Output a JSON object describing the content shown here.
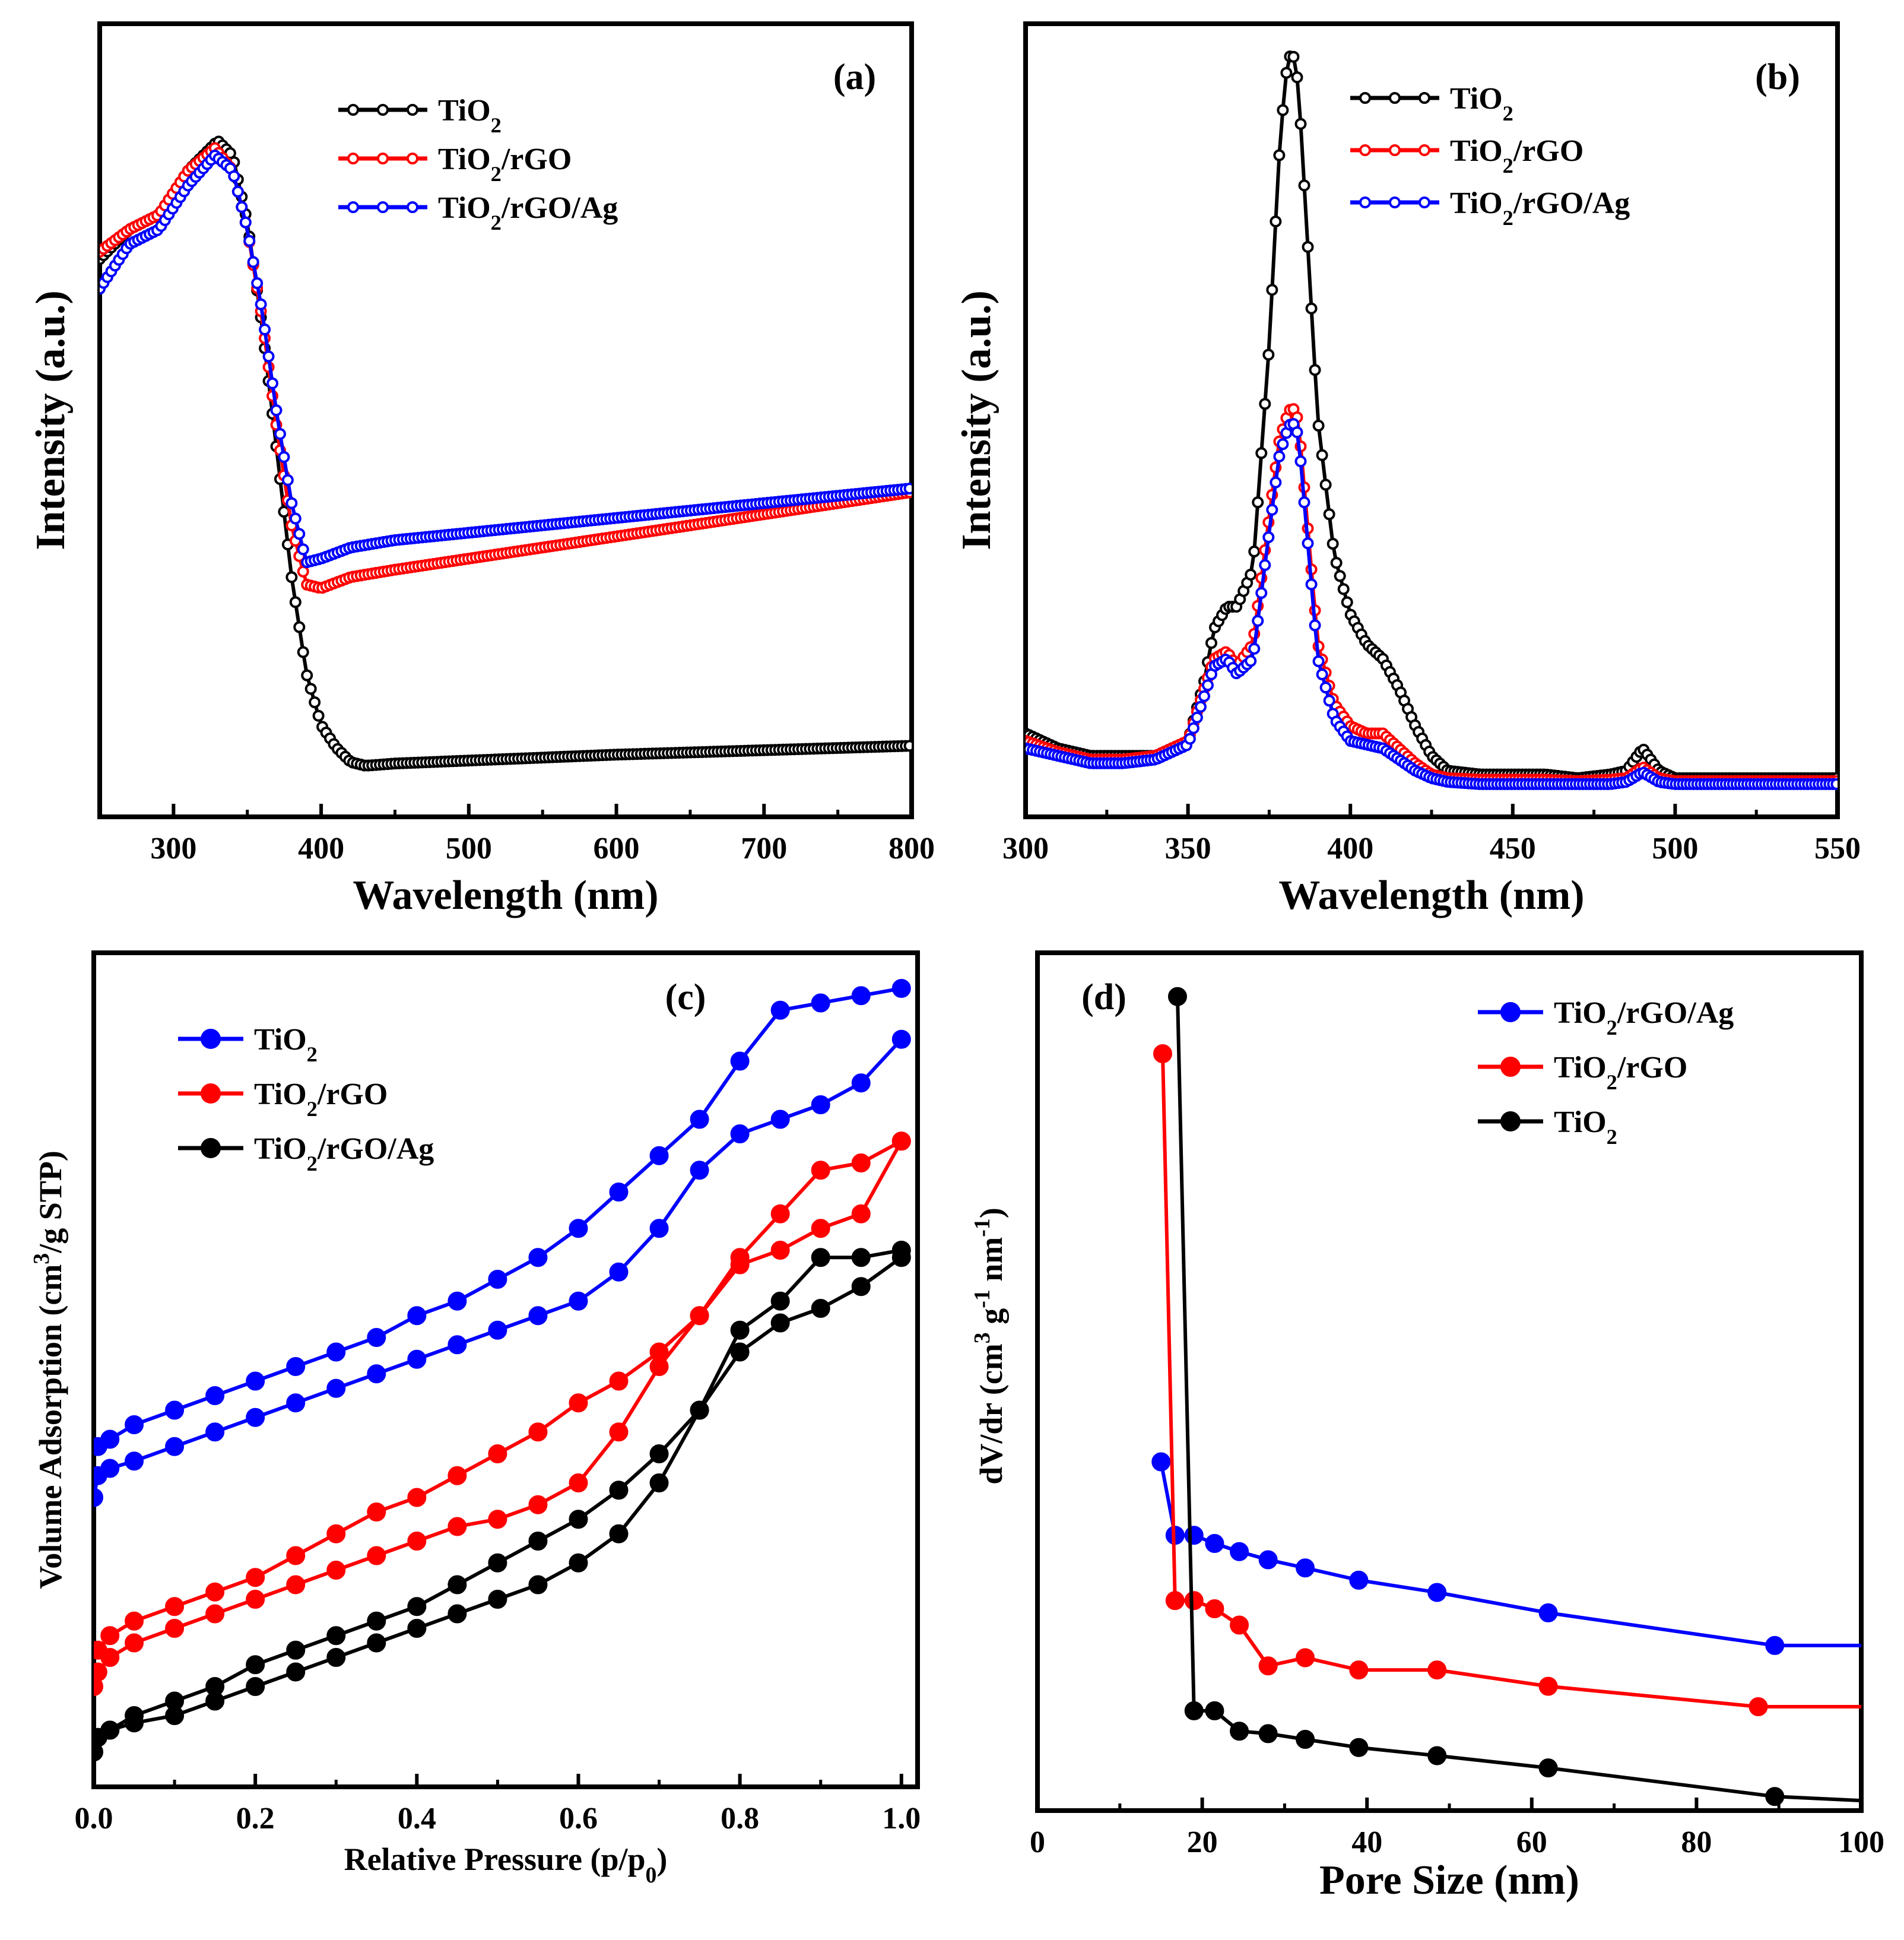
{
  "chart_data": [
    {
      "panel": "(a)",
      "type": "scatter",
      "xlabel": "Wavelength (nm)",
      "ylabel": "Intensity (a.u.)",
      "xlim": [
        250,
        800
      ],
      "ylim": [
        0,
        1
      ],
      "xticks": [
        "300",
        "400",
        "500",
        "600",
        "700",
        "800"
      ],
      "legend_position": "top-center",
      "series": [
        {
          "name": "TiO2",
          "sub": "2",
          "label_parts": [
            "TiO",
            "2",
            ""
          ],
          "color": "#000000",
          "x": [
            250,
            270,
            290,
            310,
            330,
            340,
            350,
            360,
            370,
            380,
            390,
            400,
            410,
            420,
            430,
            450,
            500,
            550,
            600,
            650,
            700,
            750,
            800
          ],
          "y": [
            0.73,
            0.77,
            0.79,
            0.85,
            0.89,
            0.87,
            0.78,
            0.64,
            0.47,
            0.3,
            0.17,
            0.1,
            0.07,
            0.05,
            0.045,
            0.048,
            0.052,
            0.056,
            0.06,
            0.063,
            0.066,
            0.069,
            0.072
          ]
        },
        {
          "name": "TiO2/rGO",
          "sub": "2",
          "label_parts": [
            "TiO",
            "2",
            "/rGO"
          ],
          "color": "#ff0000",
          "x": [
            250,
            270,
            290,
            310,
            328,
            340,
            350,
            360,
            370,
            380,
            390,
            400,
            420,
            450,
            500,
            550,
            600,
            650,
            700,
            750,
            800
          ],
          "y": [
            0.74,
            0.77,
            0.79,
            0.85,
            0.88,
            0.85,
            0.77,
            0.65,
            0.5,
            0.37,
            0.29,
            0.285,
            0.3,
            0.31,
            0.325,
            0.34,
            0.355,
            0.37,
            0.385,
            0.4,
            0.415
          ]
        },
        {
          "name": "TiO2/rGO/Ag",
          "sub": "2",
          "label_parts": [
            "TiO",
            "2",
            "/rGO/Ag"
          ],
          "color": "#0000ff",
          "x": [
            250,
            270,
            290,
            310,
            328,
            340,
            350,
            360,
            370,
            380,
            390,
            400,
            420,
            450,
            500,
            550,
            600,
            650,
            700,
            750,
            800
          ],
          "y": [
            0.69,
            0.75,
            0.77,
            0.83,
            0.87,
            0.85,
            0.77,
            0.66,
            0.52,
            0.4,
            0.32,
            0.325,
            0.34,
            0.35,
            0.36,
            0.37,
            0.38,
            0.39,
            0.4,
            0.41,
            0.42
          ]
        }
      ]
    },
    {
      "panel": "(b)",
      "type": "scatter",
      "xlabel": "Wavelength (nm)",
      "ylabel": "Intensity (a.u.)",
      "xlim": [
        300,
        550
      ],
      "ylim": [
        0,
        1
      ],
      "xticks": [
        "300",
        "350",
        "400",
        "450",
        "500",
        "550"
      ],
      "legend_position": "top-center",
      "series": [
        {
          "name": "TiO2",
          "sub": "2",
          "label_parts": [
            "TiO",
            "2",
            ""
          ],
          "color": "#000000",
          "x": [
            300,
            310,
            320,
            330,
            340,
            350,
            355,
            358,
            362,
            365,
            370,
            375,
            378,
            380,
            382,
            384,
            386,
            390,
            395,
            400,
            405,
            410,
            415,
            420,
            425,
            430,
            440,
            450,
            460,
            470,
            480,
            485,
            490,
            495,
            500,
            520,
            550
          ],
          "y": [
            0.08,
            0.06,
            0.05,
            0.05,
            0.05,
            0.07,
            0.15,
            0.22,
            0.25,
            0.25,
            0.3,
            0.6,
            0.85,
            0.96,
            1.0,
            0.95,
            0.8,
            0.5,
            0.32,
            0.24,
            0.2,
            0.18,
            0.14,
            0.09,
            0.05,
            0.03,
            0.025,
            0.025,
            0.025,
            0.02,
            0.025,
            0.03,
            0.06,
            0.03,
            0.02,
            0.02,
            0.02
          ]
        },
        {
          "name": "TiO2/rGO",
          "sub": "2",
          "label_parts": [
            "TiO",
            "2",
            "/rGO"
          ],
          "color": "#ff0000",
          "x": [
            300,
            310,
            320,
            330,
            340,
            350,
            355,
            358,
            362,
            365,
            370,
            375,
            378,
            380,
            382,
            384,
            386,
            390,
            395,
            400,
            405,
            410,
            415,
            420,
            425,
            430,
            440,
            450,
            460,
            470,
            480,
            485,
            490,
            495,
            500,
            520,
            550
          ],
          "y": [
            0.07,
            0.055,
            0.045,
            0.045,
            0.05,
            0.07,
            0.14,
            0.18,
            0.19,
            0.17,
            0.2,
            0.37,
            0.47,
            0.5,
            0.52,
            0.5,
            0.4,
            0.2,
            0.12,
            0.09,
            0.08,
            0.08,
            0.06,
            0.04,
            0.025,
            0.02,
            0.018,
            0.018,
            0.018,
            0.016,
            0.018,
            0.02,
            0.035,
            0.02,
            0.016,
            0.016,
            0.016
          ]
        },
        {
          "name": "TiO2/rGO/Ag",
          "sub": "2",
          "label_parts": [
            "TiO",
            "2",
            "/rGO/Ag"
          ],
          "color": "#0000ff",
          "x": [
            300,
            310,
            320,
            330,
            340,
            350,
            355,
            358,
            362,
            365,
            370,
            375,
            378,
            380,
            382,
            384,
            386,
            390,
            395,
            400,
            405,
            410,
            415,
            420,
            425,
            430,
            440,
            450,
            460,
            470,
            480,
            485,
            490,
            495,
            500,
            520,
            550
          ],
          "y": [
            0.06,
            0.05,
            0.04,
            0.04,
            0.045,
            0.065,
            0.13,
            0.17,
            0.18,
            0.16,
            0.18,
            0.35,
            0.45,
            0.48,
            0.5,
            0.48,
            0.38,
            0.18,
            0.1,
            0.07,
            0.065,
            0.06,
            0.045,
            0.03,
            0.02,
            0.015,
            0.012,
            0.012,
            0.012,
            0.012,
            0.012,
            0.015,
            0.028,
            0.015,
            0.012,
            0.012,
            0.012
          ]
        }
      ]
    },
    {
      "panel": "(c)",
      "type": "line",
      "xlabel": "Relative Pressure (p/p0)",
      "xlabel_parts": [
        "Relative Pressure (p/p",
        "0",
        ")"
      ],
      "ylabel": "Volume Adsorption (cm3/g STP)",
      "ylabel_parts": [
        "Volume Adsorption (cm",
        "3",
        "/g STP)"
      ],
      "xlim": [
        0,
        1.02
      ],
      "ylim": [
        0,
        1
      ],
      "xticks": [
        "0.0",
        "0.2",
        "0.4",
        "0.6",
        "0.8",
        "1.0"
      ],
      "legend_position": "top-left",
      "series": [
        {
          "name": "TiO2",
          "sub": "2",
          "label_parts": [
            "TiO",
            "2",
            ""
          ],
          "color": "#0000ff",
          "adsorption": {
            "x": [
              0.0,
              0.005,
              0.02,
              0.05,
              0.1,
              0.15,
              0.2,
              0.25,
              0.3,
              0.35,
              0.4,
              0.45,
              0.5,
              0.55,
              0.6,
              0.65,
              0.7,
              0.75,
              0.8,
              0.85,
              0.9,
              0.95,
              1.0
            ],
            "y": [
              0.3,
              0.33,
              0.34,
              0.35,
              0.37,
              0.39,
              0.41,
              0.43,
              0.45,
              0.47,
              0.49,
              0.51,
              0.53,
              0.55,
              0.57,
              0.61,
              0.67,
              0.75,
              0.8,
              0.82,
              0.84,
              0.87,
              0.93
            ]
          },
          "desorption": {
            "x": [
              1.0,
              0.95,
              0.9,
              0.85,
              0.8,
              0.75,
              0.7,
              0.65,
              0.6,
              0.55,
              0.5,
              0.45,
              0.4,
              0.35,
              0.3,
              0.25,
              0.2,
              0.15,
              0.1,
              0.05,
              0.02,
              0.005
            ],
            "y": [
              1.0,
              0.99,
              0.98,
              0.97,
              0.9,
              0.82,
              0.77,
              0.72,
              0.67,
              0.63,
              0.6,
              0.57,
              0.55,
              0.52,
              0.5,
              0.48,
              0.46,
              0.44,
              0.42,
              0.4,
              0.38,
              0.37
            ]
          }
        },
        {
          "name": "TiO2/rGO",
          "sub": "2",
          "label_parts": [
            "TiO",
            "2",
            "/rGO"
          ],
          "color": "#ff0000",
          "adsorption": {
            "x": [
              0.0,
              0.005,
              0.02,
              0.05,
              0.1,
              0.15,
              0.2,
              0.25,
              0.3,
              0.35,
              0.4,
              0.45,
              0.5,
              0.55,
              0.6,
              0.65,
              0.7,
              0.75,
              0.8,
              0.85,
              0.9,
              0.95,
              1.0
            ],
            "y": [
              0.04,
              0.06,
              0.08,
              0.1,
              0.12,
              0.14,
              0.16,
              0.18,
              0.2,
              0.22,
              0.24,
              0.26,
              0.27,
              0.29,
              0.32,
              0.39,
              0.48,
              0.55,
              0.62,
              0.64,
              0.67,
              0.69,
              0.79
            ]
          },
          "desorption": {
            "x": [
              1.0,
              0.95,
              0.9,
              0.85,
              0.8,
              0.75,
              0.7,
              0.65,
              0.6,
              0.55,
              0.5,
              0.45,
              0.4,
              0.35,
              0.3,
              0.25,
              0.2,
              0.15,
              0.1,
              0.05,
              0.02,
              0.005
            ],
            "y": [
              0.79,
              0.76,
              0.75,
              0.69,
              0.63,
              0.55,
              0.5,
              0.46,
              0.43,
              0.39,
              0.36,
              0.33,
              0.3,
              0.28,
              0.25,
              0.22,
              0.19,
              0.17,
              0.15,
              0.13,
              0.11,
              0.09
            ]
          }
        },
        {
          "name": "TiO2/rGO/Ag",
          "sub": "2",
          "label_parts": [
            "TiO",
            "2",
            "/rGO/Ag"
          ],
          "color": "#000000",
          "adsorption": {
            "x": [
              0.0,
              0.005,
              0.02,
              0.05,
              0.1,
              0.15,
              0.2,
              0.25,
              0.3,
              0.35,
              0.4,
              0.45,
              0.5,
              0.55,
              0.6,
              0.65,
              0.7,
              0.75,
              0.8,
              0.85,
              0.9,
              0.95,
              1.0
            ],
            "y": [
              -0.05,
              -0.03,
              -0.02,
              -0.01,
              0.0,
              0.02,
              0.04,
              0.06,
              0.08,
              0.1,
              0.12,
              0.14,
              0.16,
              0.18,
              0.21,
              0.25,
              0.32,
              0.42,
              0.5,
              0.54,
              0.56,
              0.59,
              0.63
            ]
          },
          "desorption": {
            "x": [
              1.0,
              0.95,
              0.9,
              0.85,
              0.8,
              0.75,
              0.7,
              0.65,
              0.6,
              0.55,
              0.5,
              0.45,
              0.4,
              0.35,
              0.3,
              0.25,
              0.2,
              0.15,
              0.1,
              0.05,
              0.02,
              0.005
            ],
            "y": [
              0.64,
              0.63,
              0.63,
              0.57,
              0.53,
              0.42,
              0.36,
              0.31,
              0.27,
              0.24,
              0.21,
              0.18,
              0.15,
              0.13,
              0.11,
              0.09,
              0.07,
              0.04,
              0.02,
              0.0,
              -0.02,
              -0.03
            ]
          }
        }
      ]
    },
    {
      "panel": "(d)",
      "type": "line",
      "xlabel": "Pore Size (nm)",
      "ylabel": "dV/dr (cm3 g-1 nm-1)",
      "ylabel_parts": [
        "dV/dr (cm",
        "3",
        " g",
        "-1",
        " nm",
        "-1",
        ")"
      ],
      "xlim": [
        0,
        100
      ],
      "ylim": [
        0,
        1
      ],
      "xticks": [
        "0",
        "20",
        "40",
        "60",
        "80",
        "100"
      ],
      "legend_position": "top-right",
      "series": [
        {
          "name": "TiO2/rGO/Ag",
          "sub": "2",
          "label_parts": [
            "TiO",
            "2",
            "/rGO/Ag"
          ],
          "color": "#0000ff",
          "x": [
            15.0,
            16.7,
            19.0,
            21.5,
            24.5,
            28.0,
            32.5,
            39.0,
            48.5,
            62.0,
            89.5,
            100
          ],
          "y": [
            0.42,
            0.33,
            0.33,
            0.32,
            0.31,
            0.3,
            0.29,
            0.275,
            0.26,
            0.235,
            0.195,
            0.195
          ],
          "markers": [
            true,
            true,
            true,
            true,
            true,
            true,
            true,
            true,
            true,
            true,
            true,
            false
          ]
        },
        {
          "name": "TiO2/rGO",
          "sub": "2",
          "label_parts": [
            "TiO",
            "2",
            "/rGO"
          ],
          "color": "#ff0000",
          "x": [
            15.2,
            16.7,
            19.0,
            21.5,
            24.5,
            28.0,
            32.5,
            39.0,
            48.5,
            62.0,
            87.5,
            100
          ],
          "y": [
            0.92,
            0.25,
            0.25,
            0.24,
            0.22,
            0.17,
            0.18,
            0.165,
            0.165,
            0.145,
            0.12,
            0.12
          ],
          "markers": [
            true,
            true,
            true,
            true,
            true,
            true,
            true,
            true,
            true,
            true,
            true,
            false
          ]
        },
        {
          "name": "TiO2",
          "sub": "2",
          "label_parts": [
            "TiO",
            "2",
            ""
          ],
          "color": "#000000",
          "x": [
            17.0,
            19.0,
            21.5,
            24.5,
            28.0,
            32.5,
            39.0,
            48.5,
            62.0,
            89.5,
            100
          ],
          "y": [
            0.99,
            0.115,
            0.115,
            0.09,
            0.087,
            0.08,
            0.07,
            0.06,
            0.045,
            0.01,
            0.005
          ],
          "markers": [
            true,
            true,
            true,
            true,
            true,
            true,
            true,
            true,
            true,
            true,
            false
          ]
        }
      ]
    }
  ]
}
